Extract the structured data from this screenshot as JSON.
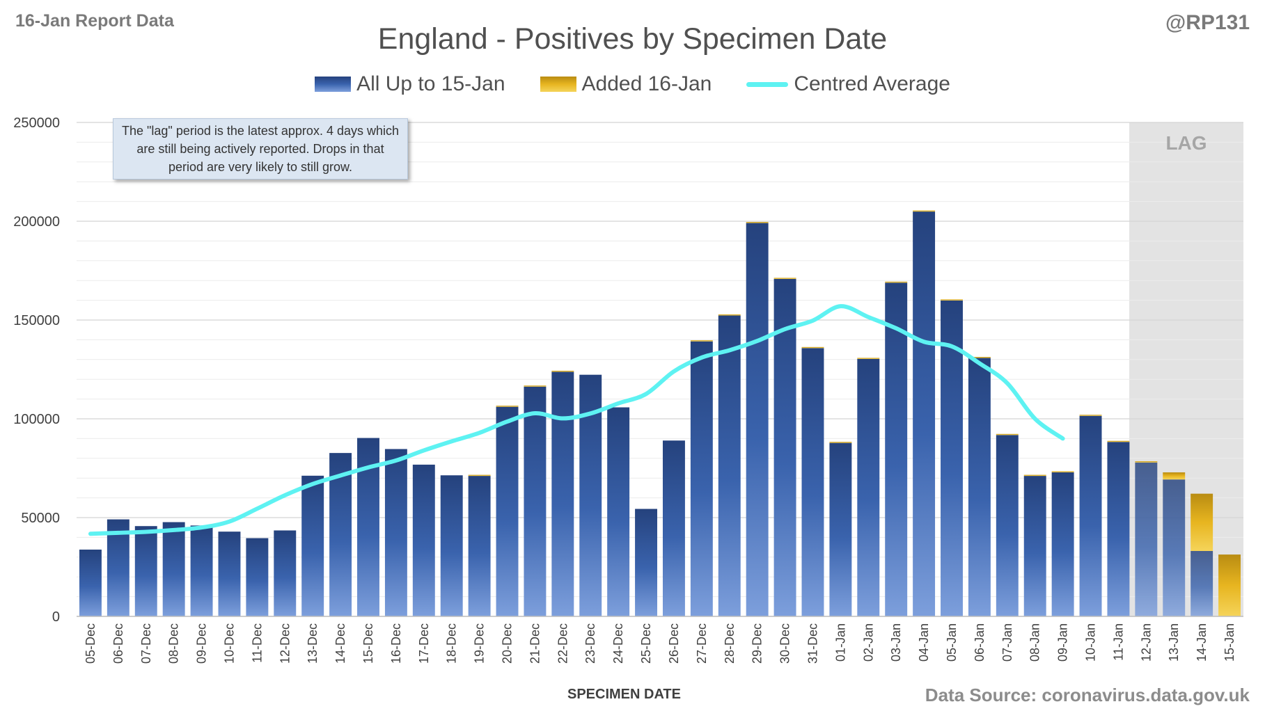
{
  "header": {
    "report_label": "16-Jan Report Data",
    "handle": "@RP131",
    "title": "England - Positives by Specimen Date"
  },
  "legend": {
    "items": [
      {
        "label": "All Up to 15-Jan",
        "color": "#3a63ad"
      },
      {
        "label": "Added 16-Jan",
        "color": "#e7b520"
      },
      {
        "label": "Centred Average",
        "color": "#5ef2f2"
      }
    ]
  },
  "annotation": {
    "text": "The \"lag\" period is the latest approx. 4 days which are still being actively reported. Drops in that period are very likely to still grow."
  },
  "lag_label": "LAG",
  "footer": {
    "xlabel": "SPECIMEN DATE",
    "source": "Data Source: coronavirus.data.gov.uk"
  },
  "chart_data": {
    "type": "bar",
    "stacked": true,
    "title": "England - Positives by Specimen Date",
    "xlabel": "SPECIMEN DATE",
    "ylabel": "",
    "ylim": [
      0,
      250000
    ],
    "yticks": [
      "0",
      "50000",
      "100000",
      "150000",
      "200000",
      "250000"
    ],
    "grid": true,
    "legend_position": "top",
    "categories": [
      "05-Dec",
      "06-Dec",
      "07-Dec",
      "08-Dec",
      "09-Dec",
      "10-Dec",
      "11-Dec",
      "12-Dec",
      "13-Dec",
      "14-Dec",
      "15-Dec",
      "16-Dec",
      "17-Dec",
      "18-Dec",
      "19-Dec",
      "20-Dec",
      "21-Dec",
      "22-Dec",
      "23-Dec",
      "24-Dec",
      "25-Dec",
      "26-Dec",
      "27-Dec",
      "28-Dec",
      "29-Dec",
      "30-Dec",
      "31-Dec",
      "01-Jan",
      "02-Jan",
      "03-Jan",
      "04-Jan",
      "05-Jan",
      "06-Jan",
      "07-Jan",
      "08-Jan",
      "09-Jan",
      "10-Jan",
      "11-Jan",
      "12-Jan",
      "13-Jan",
      "14-Jan",
      "15-Jan"
    ],
    "series": [
      {
        "name": "All Up to 15-Jan",
        "values": [
          33800,
          49100,
          45700,
          47700,
          46000,
          42900,
          39600,
          43500,
          71200,
          82700,
          90300,
          84700,
          76800,
          71400,
          71100,
          106100,
          116300,
          123800,
          122300,
          105800,
          54400,
          89000,
          139200,
          152300,
          199100,
          170800,
          135800,
          87800,
          130300,
          168900,
          204900,
          159900,
          130800,
          91800,
          71100,
          72900,
          101500,
          88300,
          77900,
          69300,
          33100,
          0
        ]
      },
      {
        "name": "Added 16-Jan",
        "values": [
          0,
          0,
          0,
          0,
          0,
          0,
          0,
          0,
          0,
          0,
          0,
          0,
          0,
          0,
          300,
          200,
          200,
          300,
          0,
          0,
          0,
          0,
          200,
          200,
          300,
          300,
          300,
          400,
          200,
          500,
          500,
          500,
          300,
          300,
          300,
          300,
          300,
          300,
          600,
          3600,
          29000,
          31300
        ]
      },
      {
        "name": "Centred Average",
        "type": "line",
        "values": [
          41800,
          42300,
          42800,
          43700,
          45000,
          48000,
          54500,
          61300,
          67000,
          71300,
          75400,
          78900,
          84000,
          88600,
          92900,
          98600,
          102800,
          100200,
          102700,
          107800,
          112600,
          124000,
          131000,
          134700,
          139400,
          145400,
          149700,
          157000,
          151500,
          145800,
          139000,
          136700,
          128100,
          118000,
          100000,
          90000,
          null,
          null,
          null,
          null,
          null,
          null
        ]
      }
    ],
    "lag_categories": [
      "12-Jan",
      "13-Jan",
      "14-Jan",
      "15-Jan"
    ]
  }
}
